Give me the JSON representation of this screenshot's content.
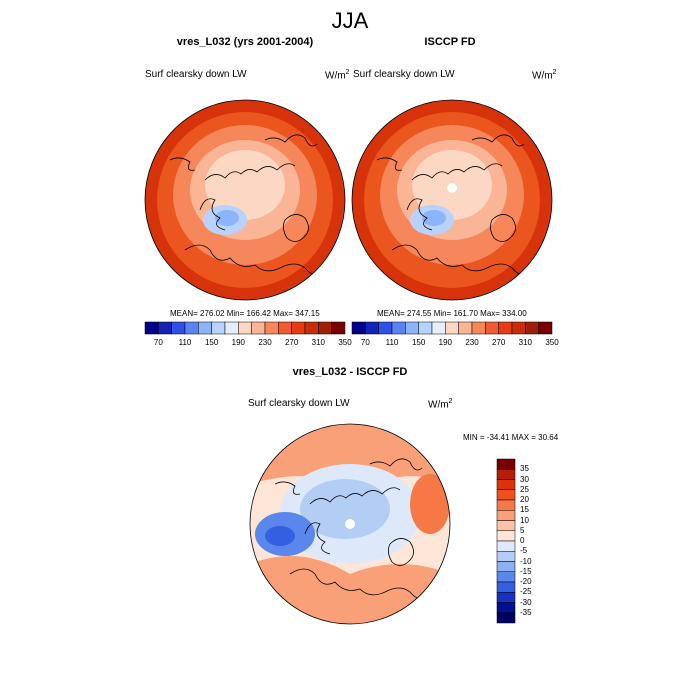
{
  "figure": {
    "title": "JJA",
    "panels": [
      {
        "id": "model",
        "title": "vres_L032 (yrs 2001-2004)",
        "left_label": "Surf clearsky down LW",
        "right_label": "W/m",
        "units_superscript": "2",
        "stats": "MEAN= 276.02  Min= 166.42  Max= 347.15"
      },
      {
        "id": "obs",
        "title": "ISCCP FD",
        "left_label": "Surf clearsky down LW",
        "right_label": "W/m",
        "units_superscript": "2",
        "stats": "MEAN= 274.55  Min= 161.70  Max= 334.00"
      },
      {
        "id": "diff",
        "title": "vres_L032 - ISCCP FD",
        "left_label": "Surf clearsky down LW",
        "right_label": "W/m",
        "units_superscript": "2",
        "stats": "MIN = -34.41 MAX =  30.64"
      }
    ],
    "abs_colorbar": {
      "labels": [
        "70",
        "110",
        "150",
        "190",
        "230",
        "270",
        "310",
        "350"
      ],
      "colors": [
        "#00008b",
        "#0f24b4",
        "#2d50e6",
        "#5a82f5",
        "#8cb4fa",
        "#b9d2fc",
        "#e6eefc",
        "#fcd7c3",
        "#fab496",
        "#f5875a",
        "#f05a32",
        "#e63c14",
        "#c82d0a",
        "#a01e05",
        "#780000"
      ]
    },
    "diff_colorbar": {
      "labels": [
        "35",
        "30",
        "25",
        "20",
        "15",
        "10",
        "5",
        "0",
        "-5",
        "-10",
        "-15",
        "-20",
        "-25",
        "-30",
        "-35"
      ],
      "colors": [
        "#780000",
        "#b41e05",
        "#dc320a",
        "#f0501e",
        "#f57846",
        "#faa078",
        "#fcc3a5",
        "#fde6d8",
        "#dde8fa",
        "#b4cdf5",
        "#8cb0f0",
        "#5a87eb",
        "#3260e1",
        "#1432c3",
        "#000f96",
        "#000064"
      ]
    },
    "map_colors": {
      "outer": "#d7330b",
      "ring": "#eb551e",
      "mid": "#f5875a",
      "inner": "#fab496",
      "pole": "#fcd7c3",
      "cold": "#b9d2fc",
      "colder": "#8cb4fa",
      "diff_base": "#fde6d8",
      "diff_warm": "#faa078",
      "diff_warm2": "#f57846",
      "diff_cool": "#dde8fa",
      "diff_cool2": "#b4cdf5",
      "diff_blue": "#5a87eb",
      "diff_blue2": "#3260e1"
    }
  }
}
